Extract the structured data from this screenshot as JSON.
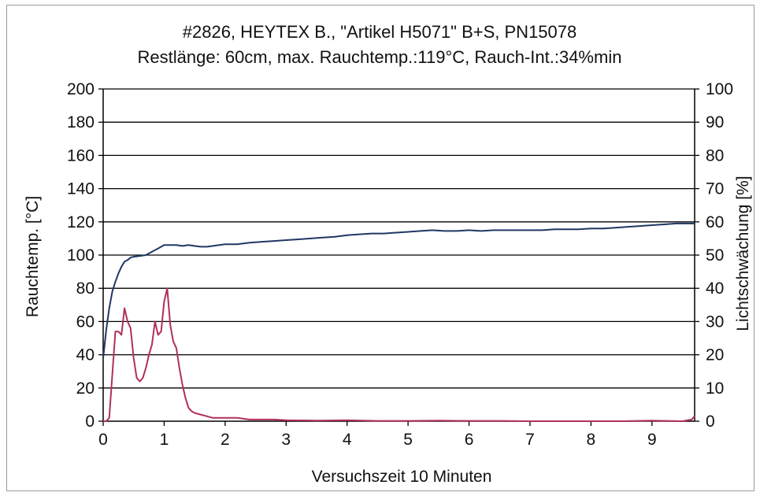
{
  "chart_data": {
    "type": "line",
    "title": "#2826, HEYTEX B., \"Artikel H5071\" B+S, PN15078",
    "subtitle": "Restlänge: 60cm, max. Rauchtemp.:119°C, Rauch-Int.:34%min",
    "xlabel": "Versuchszeit 10 Minuten",
    "ylabel_left": "Rauchtemp. [°C]",
    "ylabel_right": "Lichtschwächung [%]",
    "xlim": [
      0,
      9.7
    ],
    "ylim_left": [
      0,
      200
    ],
    "ylim_right": [
      0,
      100
    ],
    "x_ticks": [
      "0",
      "1",
      "2",
      "3",
      "4",
      "5",
      "6",
      "7",
      "8",
      "9"
    ],
    "y_ticks_left": [
      "0",
      "20",
      "40",
      "60",
      "80",
      "100",
      "120",
      "140",
      "160",
      "180",
      "200"
    ],
    "y_ticks_right": [
      "0",
      "10",
      "20",
      "30",
      "40",
      "50",
      "60",
      "70",
      "80",
      "90",
      "100"
    ],
    "grid": "horizontal",
    "colors": {
      "temperature": "#1f3864",
      "light": "#b0305a",
      "grid": "#000000",
      "right_axis_label": "#b0305a"
    },
    "series": [
      {
        "axis": "left",
        "x": [
          0,
          0.05,
          0.1,
          0.15,
          0.2,
          0.25,
          0.3,
          0.35,
          0.4,
          0.45,
          0.5,
          0.6,
          0.7,
          0.8,
          0.9,
          1.0,
          1.1,
          1.2,
          1.3,
          1.4,
          1.5,
          1.6,
          1.7,
          1.8,
          1.9,
          2.0,
          2.2,
          2.4,
          2.6,
          2.8,
          3.0,
          3.2,
          3.4,
          3.6,
          3.8,
          4.0,
          4.2,
          4.4,
          4.6,
          4.8,
          5.0,
          5.2,
          5.4,
          5.6,
          5.8,
          6.0,
          6.2,
          6.4,
          6.6,
          6.8,
          7.0,
          7.2,
          7.4,
          7.6,
          7.8,
          8.0,
          8.2,
          8.4,
          8.6,
          8.8,
          9.0,
          9.2,
          9.4,
          9.6,
          9.7
        ],
        "values": [
          38,
          55,
          68,
          78,
          84,
          89,
          93,
          96,
          97,
          98.5,
          99,
          99.5,
          100,
          102,
          104,
          106,
          106,
          106,
          105.5,
          106,
          105.5,
          105,
          105,
          105.5,
          106,
          106.5,
          106.5,
          107.5,
          108,
          108.5,
          109,
          109.5,
          110,
          110.5,
          111,
          112,
          112.5,
          113,
          113,
          113.5,
          114,
          114.5,
          115,
          114.5,
          114.5,
          115,
          114.5,
          115,
          115,
          115,
          115,
          115,
          115.5,
          115.5,
          115.5,
          116,
          116,
          116.5,
          117,
          117.5,
          118,
          118.5,
          119,
          119,
          119
        ]
      },
      {
        "axis": "right",
        "x": [
          0,
          0.05,
          0.1,
          0.15,
          0.2,
          0.25,
          0.3,
          0.35,
          0.4,
          0.45,
          0.5,
          0.55,
          0.6,
          0.65,
          0.7,
          0.75,
          0.8,
          0.85,
          0.9,
          0.95,
          1.0,
          1.05,
          1.1,
          1.15,
          1.2,
          1.25,
          1.3,
          1.35,
          1.4,
          1.45,
          1.5,
          1.6,
          1.7,
          1.8,
          1.9,
          2.0,
          2.2,
          2.4,
          2.6,
          2.8,
          3.0,
          3.5,
          4.0,
          4.5,
          5.0,
          5.5,
          6.0,
          6.5,
          7.0,
          7.5,
          8.0,
          8.5,
          9.0,
          9.5,
          9.65,
          9.7
        ],
        "values": [
          0,
          0,
          1,
          14,
          27,
          27,
          26,
          34,
          30,
          28,
          19,
          13,
          12,
          13,
          16,
          20,
          23,
          30,
          26,
          27,
          36,
          40,
          29,
          24,
          22,
          16,
          11,
          7,
          4,
          3,
          2.5,
          2,
          1.5,
          1,
          1,
          1,
          1,
          0.5,
          0.5,
          0.5,
          0.3,
          0.2,
          0.3,
          0.1,
          0.1,
          0.2,
          0.1,
          0.1,
          0,
          0,
          0,
          0,
          0.2,
          0,
          0.5,
          1.5
        ]
      }
    ]
  }
}
